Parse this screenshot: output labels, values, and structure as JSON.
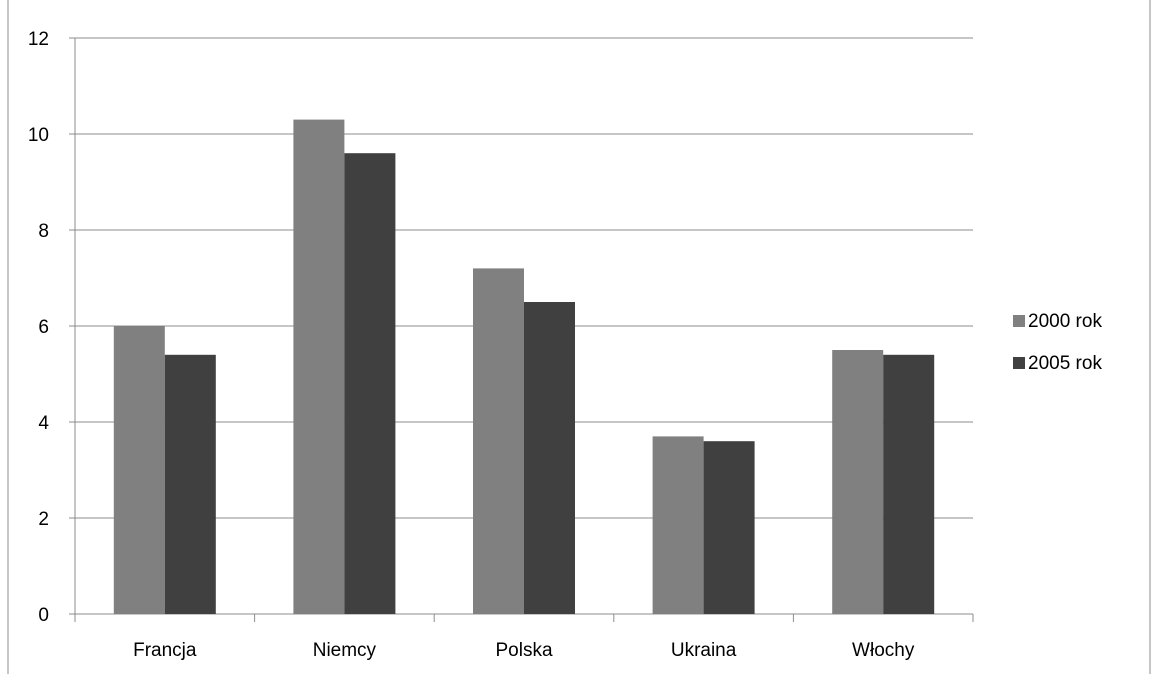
{
  "chart_data": {
    "type": "bar",
    "title": "",
    "xlabel": "",
    "ylabel": "",
    "categories": [
      "Francja",
      "Niemcy",
      "Polska",
      "Ukraina",
      "Włochy"
    ],
    "series": [
      {
        "name": "2000 rok",
        "color": "#808080",
        "values": [
          6.0,
          10.3,
          7.2,
          3.7,
          5.5
        ]
      },
      {
        "name": "2005 rok",
        "color": "#404040",
        "values": [
          5.4,
          9.6,
          6.5,
          3.6,
          5.4
        ]
      }
    ],
    "ylim": [
      0,
      12
    ],
    "yticks": [
      "0",
      "2",
      "4",
      "6",
      "8",
      "10",
      "12"
    ],
    "grid": true,
    "legend": "right"
  }
}
